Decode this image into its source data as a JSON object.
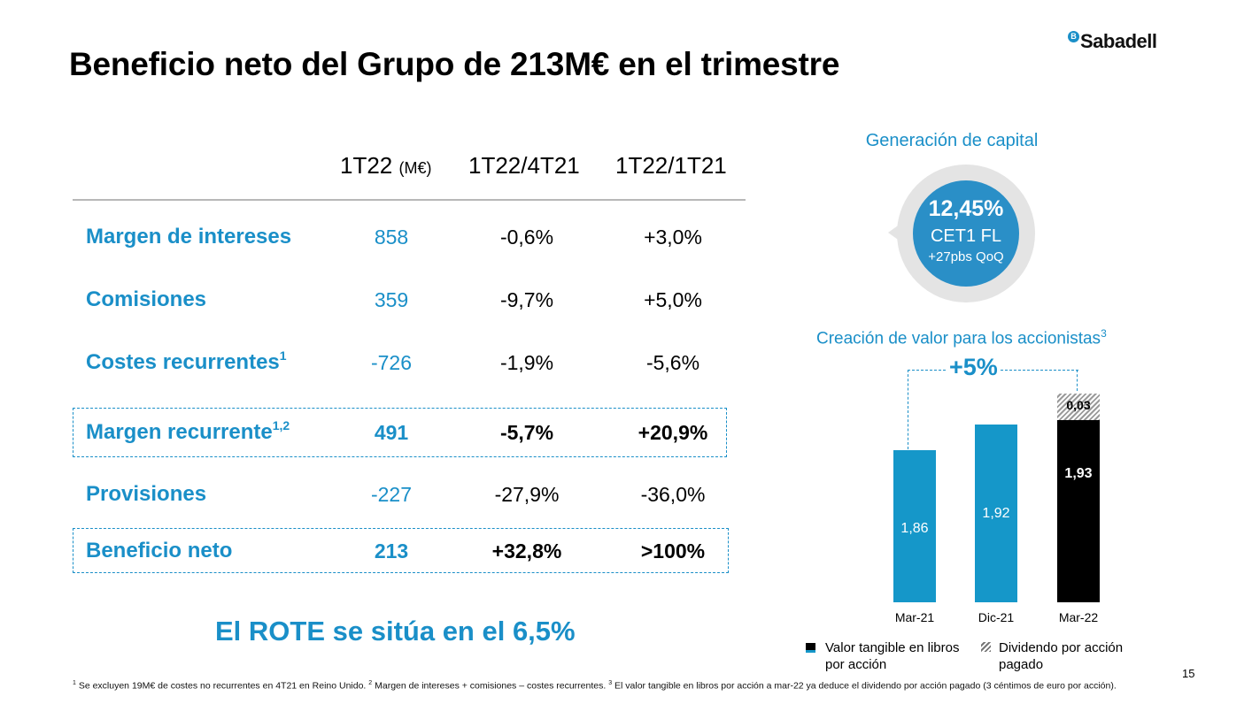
{
  "title": "Beneficio neto del Grupo de 213M€ en el trimestre",
  "brand": {
    "logo_letter": "B",
    "name": "Sabadell",
    "color": "#1a8fc8"
  },
  "table": {
    "headers": [
      {
        "label": "1T22",
        "unit": "(M€)"
      },
      {
        "label": "1T22/4T21"
      },
      {
        "label": "1T22/1T21"
      }
    ],
    "rows": [
      {
        "label": "Margen de intereses",
        "sup": "",
        "value": "858",
        "qoq": "-0,6%",
        "yoy": "+3,0%"
      },
      {
        "label": "Comisiones",
        "sup": "",
        "value": "359",
        "qoq": "-9,7%",
        "yoy": "+5,0%"
      },
      {
        "label": "Costes recurrentes",
        "sup": "1",
        "value": "-726",
        "qoq": "-1,9%",
        "yoy": "-5,6%"
      },
      {
        "label": "Margen recurrente",
        "sup": "1,2",
        "value": "491",
        "qoq": "-5,7%",
        "yoy": "+20,9%"
      },
      {
        "label": "Provisiones",
        "sup": "",
        "value": "-227",
        "qoq": "-27,9%",
        "yoy": "-36,0%"
      },
      {
        "label": "Beneficio neto",
        "sup": "",
        "value": "213",
        "qoq": "+32,8%",
        "yoy": ">100%"
      }
    ]
  },
  "rote": "El ROTE se sitúa en el 6,5%",
  "capital": {
    "title": "Generación de capital",
    "value": "12,45%",
    "metric": "CET1 FL",
    "change": "+27pbs QoQ"
  },
  "chart_data": {
    "type": "bar",
    "title": "Creación de valor para los accionistas",
    "title_sup": "3",
    "categories": [
      "Mar-21",
      "Dic-21",
      "Mar-22"
    ],
    "series": [
      {
        "name": "Valor tangible en libros por acción",
        "values": [
          1.86,
          1.92,
          1.93
        ],
        "labels": [
          "1,86",
          "1,92",
          "1,93"
        ]
      },
      {
        "name": "Dividendo por acción pagado",
        "values": [
          0,
          0,
          0.03
        ],
        "labels": [
          "",
          "",
          "0,03"
        ]
      }
    ],
    "annotation": "+5%",
    "legend": [
      "Valor tangible en libros por acción",
      "Dividendo por acción pagado"
    ],
    "colors": {
      "blue": "#1597c9",
      "black": "#000000"
    }
  },
  "footnote": {
    "n1": "1",
    "t1": " Se excluyen 19M€ de costes no recurrentes en 4T21 en Reino Unido. ",
    "n2": "2",
    "t2": " Margen de intereses + comisiones – costes recurrentes. ",
    "n3": "3",
    "t3": " El valor tangible en libros por acción a mar-22 ya deduce el dividendo por acción pagado (3 céntimos de euro por acción)."
  },
  "page_number": "15"
}
